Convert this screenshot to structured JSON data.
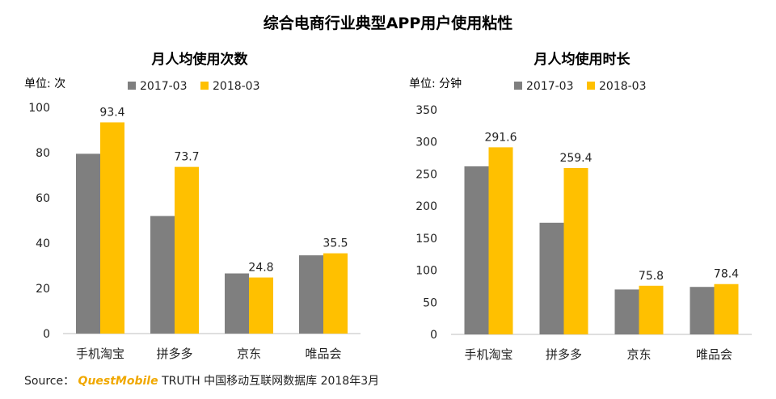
{
  "title": "综合电商行业典型APP用户使用粘性",
  "source": {
    "label": "Source：",
    "brand": "QuestMobile",
    "text": "TRUTH 中国移动互联网数据库 2018年3月"
  },
  "colors": {
    "series_2017": "#7f7f7f",
    "series_2018": "#ffc000"
  },
  "chart_data": [
    {
      "type": "bar",
      "title": "月人均使用次数",
      "unit_label": "单位: 次",
      "categories": [
        "手机淘宝",
        "拼多多",
        "京东",
        "唯品会"
      ],
      "series": [
        {
          "name": "2017-03",
          "values": [
            79.5,
            52.0,
            26.6,
            34.6
          ]
        },
        {
          "name": "2018-03",
          "values": [
            93.4,
            73.7,
            24.8,
            35.5
          ]
        }
      ],
      "data_labels": [
        [
          null,
          null,
          null,
          null
        ],
        [
          "93.4",
          "73.7",
          "24.8",
          "35.5"
        ]
      ],
      "ylim": [
        0,
        100
      ],
      "yticks": [
        0,
        20,
        40,
        60,
        80,
        100
      ],
      "legend": "top",
      "grid": false
    },
    {
      "type": "bar",
      "title": "月人均使用时长",
      "unit_label": "单位: 分钟",
      "categories": [
        "手机淘宝",
        "拼多多",
        "京东",
        "唯品会"
      ],
      "series": [
        {
          "name": "2017-03",
          "values": [
            262,
            174,
            70,
            74
          ]
        },
        {
          "name": "2018-03",
          "values": [
            291.6,
            259.4,
            75.8,
            78.4
          ]
        }
      ],
      "data_labels": [
        [
          null,
          null,
          null,
          null
        ],
        [
          "291.6",
          "259.4",
          "75.8",
          "78.4"
        ]
      ],
      "ylim": [
        0,
        350
      ],
      "yticks": [
        0,
        50,
        100,
        150,
        200,
        250,
        300,
        350
      ],
      "legend": "top",
      "grid": false
    }
  ]
}
